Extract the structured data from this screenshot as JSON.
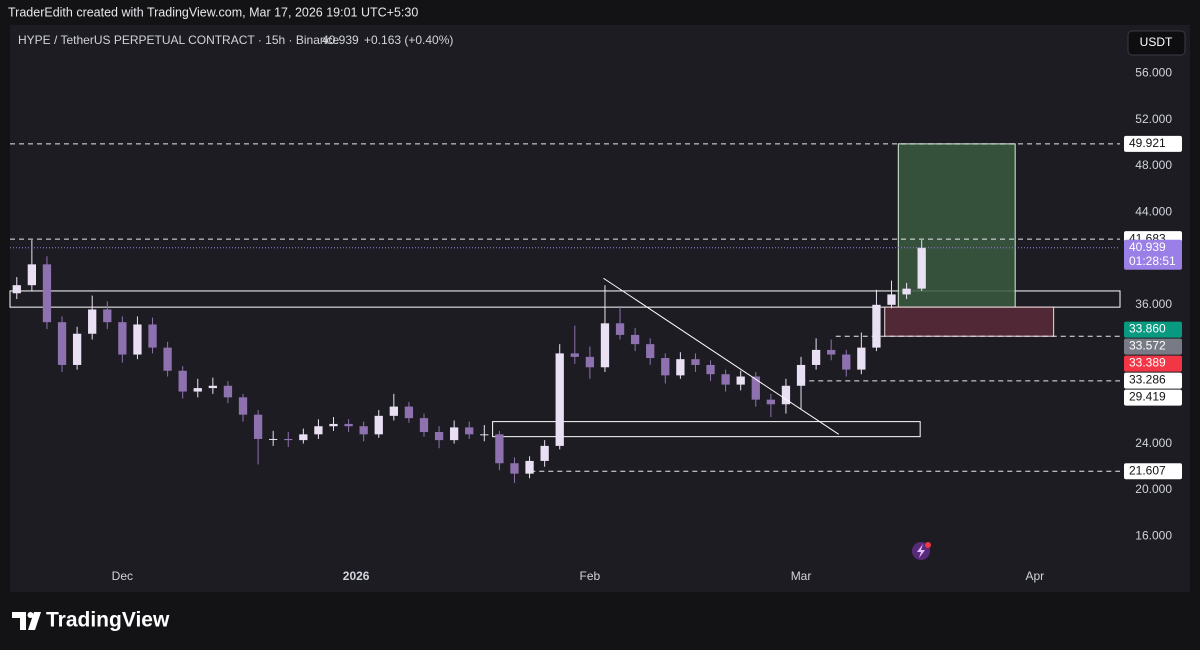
{
  "credit": "TraderEdith created with TradingView.com, Mar 17, 2026 19:01 UTC+5:30",
  "header": {
    "symbol": "HYPE / TetherUS PERPETUAL CONTRACT · 15h · Binance",
    "price": 40.939,
    "change": "+0.163 (+0.40%)",
    "currency": "USDT"
  },
  "logo": "TradingView",
  "chart_data": {
    "type": "candlestick",
    "x": [
      -14,
      -12,
      -10,
      -8,
      -6,
      -4,
      -2,
      0,
      2,
      4,
      6,
      8,
      10,
      12,
      14,
      16,
      18,
      20,
      22,
      24,
      26,
      28,
      30,
      32,
      34,
      36,
      38,
      40,
      42,
      44,
      46,
      48,
      50,
      52,
      54,
      56,
      58,
      60,
      62,
      64,
      66,
      68,
      70,
      72,
      74,
      76,
      78,
      80,
      82,
      84,
      86,
      88,
      90,
      92,
      94,
      96,
      98,
      100,
      102,
      104,
      106
    ],
    "open": [
      37.0,
      37.7,
      39.5,
      34.5,
      30.8,
      33.5,
      35.6,
      34.5,
      31.7,
      34.3,
      32.3,
      30.3,
      28.5,
      28.8,
      29.0,
      28.0,
      26.5,
      24.4,
      24.4,
      24.3,
      24.8,
      25.5,
      25.7,
      25.5,
      24.8,
      26.4,
      27.2,
      26.2,
      25.0,
      24.3,
      25.4,
      24.8,
      24.8,
      22.3,
      21.4,
      22.5,
      23.8,
      31.8,
      31.5,
      30.6,
      34.4,
      33.4,
      32.6,
      31.4,
      29.9,
      31.3,
      30.8,
      30.0,
      29.1,
      29.8,
      27.8,
      27.4,
      29.0,
      30.8,
      32.1,
      31.7,
      30.4,
      32.3,
      36.0,
      36.9,
      37.4
    ],
    "high": [
      38.4,
      41.6,
      40.2,
      35.0,
      34.1,
      36.8,
      36.3,
      35.0,
      35.0,
      34.9,
      32.8,
      30.7,
      29.6,
      29.7,
      29.4,
      28.3,
      26.9,
      25.1,
      25.0,
      25.3,
      26.1,
      26.3,
      26.1,
      25.9,
      26.9,
      28.3,
      27.6,
      26.6,
      25.5,
      26.0,
      25.9,
      25.6,
      25.1,
      22.8,
      22.9,
      24.3,
      32.6,
      34.2,
      32.4,
      37.7,
      35.9,
      34.0,
      33.1,
      31.8,
      31.9,
      31.8,
      31.2,
      30.4,
      30.3,
      30.2,
      28.3,
      29.6,
      31.5,
      33.1,
      33.0,
      32.1,
      33.6,
      37.3,
      38.1,
      37.9,
      41.6
    ],
    "low": [
      36.5,
      37.2,
      33.9,
      30.2,
      30.4,
      33.0,
      33.9,
      31.0,
      31.3,
      31.8,
      29.8,
      27.9,
      28.0,
      28.3,
      27.5,
      25.9,
      22.2,
      23.8,
      23.7,
      24.0,
      24.4,
      25.1,
      25.0,
      24.2,
      24.5,
      26.0,
      25.8,
      24.6,
      23.6,
      24.0,
      24.4,
      24.2,
      21.7,
      20.6,
      21.0,
      22.0,
      23.5,
      30.9,
      29.6,
      30.2,
      33.0,
      32.0,
      30.8,
      29.2,
      29.6,
      30.2,
      29.4,
      28.5,
      28.6,
      27.2,
      26.3,
      26.6,
      27.0,
      30.4,
      31.2,
      29.8,
      30.0,
      32.0,
      35.7,
      36.5,
      37.2
    ],
    "close": [
      37.7,
      39.5,
      34.5,
      30.8,
      33.5,
      35.6,
      34.5,
      31.7,
      34.3,
      32.3,
      30.3,
      28.5,
      28.8,
      29.0,
      28.0,
      26.5,
      24.4,
      24.4,
      24.3,
      24.8,
      25.5,
      25.7,
      25.5,
      24.8,
      26.4,
      27.2,
      26.2,
      25.0,
      24.3,
      25.4,
      24.8,
      24.8,
      22.3,
      21.4,
      22.5,
      23.8,
      31.8,
      31.5,
      30.6,
      34.4,
      33.4,
      32.6,
      31.4,
      29.9,
      31.3,
      30.8,
      30.0,
      29.1,
      29.8,
      27.8,
      27.4,
      29.0,
      30.8,
      32.1,
      31.7,
      30.4,
      32.3,
      36.0,
      36.9,
      37.4,
      40.939
    ],
    "up_color": "#e9e1f3",
    "down_color": "#8e72b0",
    "xlim": [
      -14.9,
      132.3
    ],
    "xticks": [
      {
        "value": 0,
        "label": "Dec"
      },
      {
        "value": 31,
        "label": "2026"
      },
      {
        "value": 62,
        "label": "Feb"
      },
      {
        "value": 90,
        "label": "Mar"
      },
      {
        "value": 121,
        "label": "Apr"
      }
    ],
    "ylim": [
      13.5,
      60.2
    ],
    "yticks": [
      {
        "value": 56,
        "label": "56.000"
      },
      {
        "value": 52,
        "label": "52.000"
      },
      {
        "value": 48,
        "label": "48.000"
      },
      {
        "value": 44,
        "label": "44.000"
      },
      {
        "value": 36,
        "label": "36.000"
      },
      {
        "value": 24,
        "label": "24.000"
      },
      {
        "value": 20,
        "label": "20.000"
      },
      {
        "value": 16,
        "label": "16.000"
      }
    ],
    "grid": false,
    "levels": [
      49.921,
      41.683,
      {
        "value": 33.86,
        "label": "33.860"
      },
      33.572,
      33.389,
      33.286,
      29.419,
      21.607
    ],
    "level_colors": [
      "#ffffff",
      "#ffffff",
      "#089981",
      "#787b86",
      "#f23645",
      "#ffffff",
      "#ffffff",
      "#ffffff"
    ],
    "level_lines_from": [
      -14.9,
      -14.9,
      null,
      null,
      null,
      94.6,
      89.9,
      54.1
    ],
    "last_price": {
      "value": 40.939,
      "countdown": "01:28:51",
      "color": "#9a7fe6"
    },
    "zones": [
      {
        "x": [
          -14.9,
          132.3
        ],
        "y": [
          35.8,
          37.2
        ],
        "fill": "none",
        "stroke": "#ffffff"
      },
      {
        "x": [
          49.1,
          105.8
        ],
        "y": [
          24.6,
          25.9
        ],
        "fill": "none",
        "stroke": "#ffffff"
      },
      {
        "x": [
          102.9,
          118.4
        ],
        "y": [
          35.8,
          49.921
        ],
        "fill": "#3a5a40",
        "stroke": "#d8f0d8"
      },
      {
        "x": [
          101.1,
          123.5
        ],
        "y": [
          33.286,
          35.8
        ],
        "fill": "#5a2a38",
        "stroke": "#f0d8dc"
      }
    ],
    "trend_line": {
      "x": [
        63.8,
        95.0
      ],
      "y": [
        38.3,
        24.8
      ],
      "color": "#ffffff"
    }
  }
}
